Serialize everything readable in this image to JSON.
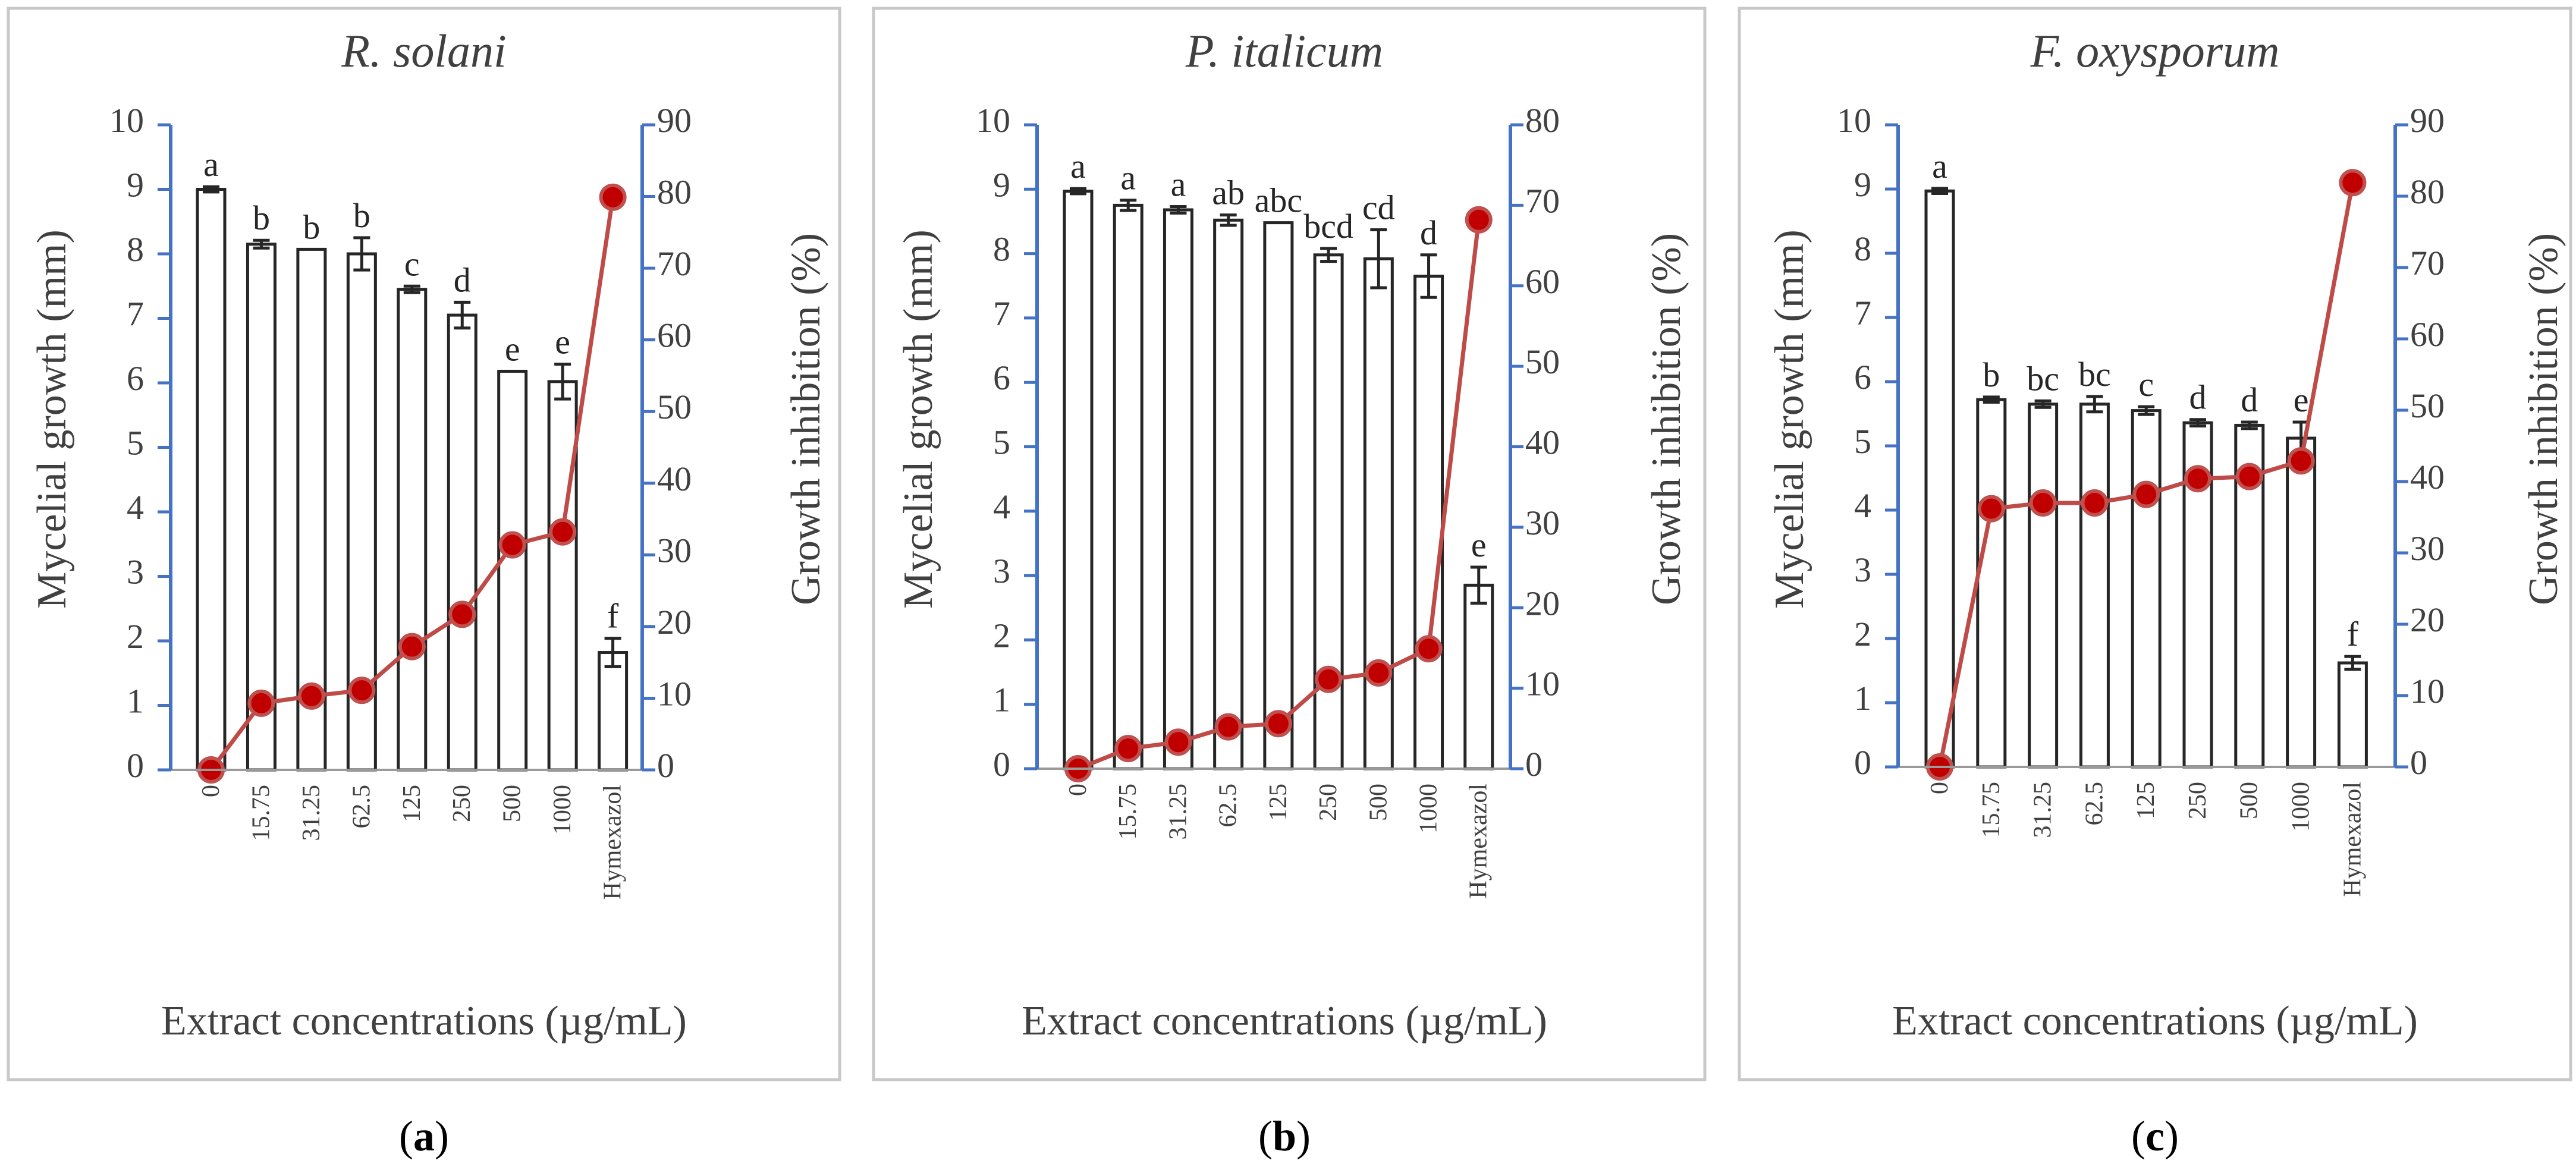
{
  "figure": {
    "x_label": "Extract concentrations (µg/mL)",
    "y_left_label": "Mycelial growth (mm)",
    "y_right_label": "Growth inhibition (%)",
    "categories": [
      "0",
      "15.75",
      "31.25",
      "62.5",
      "125",
      "250",
      "500",
      "1000",
      "Hymexazol"
    ],
    "colors": {
      "bar_fill": "#ffffff",
      "bar_stroke": "#262626",
      "line": "#be4b48",
      "marker_edge": "#c0504d",
      "marker_fill": "#c00000",
      "axis": "#4472c4",
      "frame": "#c8c8c8",
      "text": "#404040"
    }
  },
  "chart_data": [
    {
      "type": "bar+line",
      "panel_label": "a",
      "title": "R. solani",
      "categories": [
        "0",
        "15.75",
        "31.25",
        "62.5",
        "125",
        "250",
        "500",
        "1000",
        "Hymexazol"
      ],
      "bar_series": {
        "name": "Mycelial growth (mm)",
        "values": [
          9.0,
          8.15,
          8.07,
          8.0,
          7.45,
          7.05,
          6.18,
          6.02,
          1.82
        ],
        "errors": [
          0.04,
          0.06,
          0.0,
          0.25,
          0.05,
          0.2,
          0.0,
          0.27,
          0.22
        ],
        "letters": [
          "a",
          "b",
          "b",
          "b",
          "c",
          "d",
          "e",
          "e",
          "f"
        ]
      },
      "line_series": {
        "name": "Growth inhibition (%)",
        "values": [
          0,
          9.3,
          10.3,
          11.1,
          17.2,
          21.7,
          31.4,
          33.2,
          79.9
        ]
      },
      "y_left": {
        "min": 0,
        "max": 10,
        "ticks": [
          0,
          1,
          2,
          3,
          4,
          5,
          6,
          7,
          8,
          9,
          10
        ]
      },
      "y_right": {
        "min": 0,
        "max": 90,
        "ticks": [
          0,
          10,
          20,
          30,
          40,
          50,
          60,
          70,
          80,
          90
        ]
      }
    },
    {
      "type": "bar+line",
      "panel_label": "b",
      "title": "P. italicum",
      "categories": [
        "0",
        "15.75",
        "31.25",
        "62.5",
        "125",
        "250",
        "500",
        "1000",
        "Hymexazol"
      ],
      "bar_series": {
        "name": "Mycelial growth (mm)",
        "values": [
          8.97,
          8.75,
          8.68,
          8.52,
          8.48,
          7.98,
          7.92,
          7.65,
          2.85
        ],
        "errors": [
          0.04,
          0.08,
          0.05,
          0.08,
          0.0,
          0.1,
          0.45,
          0.33,
          0.28
        ],
        "letters": [
          "a",
          "a",
          "a",
          "ab",
          "abc",
          "bcd",
          "cd",
          "d",
          "e"
        ]
      },
      "line_series": {
        "name": "Growth inhibition (%)",
        "values": [
          0,
          2.5,
          3.3,
          5.2,
          5.6,
          11.1,
          11.9,
          14.9,
          68.2
        ]
      },
      "y_left": {
        "min": 0,
        "max": 10,
        "ticks": [
          0,
          1,
          2,
          3,
          4,
          5,
          6,
          7,
          8,
          9,
          10
        ]
      },
      "y_right": {
        "min": 0,
        "max": 80,
        "ticks": [
          0,
          10,
          20,
          30,
          40,
          50,
          60,
          70,
          80
        ]
      }
    },
    {
      "type": "bar+line",
      "panel_label": "c",
      "title": "F. oxysporum",
      "categories": [
        "0",
        "15.75",
        "31.25",
        "62.5",
        "125",
        "250",
        "500",
        "1000",
        "Hymexazol"
      ],
      "bar_series": {
        "name": "Mycelial growth (mm)",
        "values": [
          8.97,
          5.72,
          5.65,
          5.65,
          5.55,
          5.36,
          5.32,
          5.12,
          1.62
        ],
        "errors": [
          0.04,
          0.04,
          0.05,
          0.12,
          0.06,
          0.05,
          0.05,
          0.25,
          0.1
        ],
        "letters": [
          "a",
          "b",
          "bc",
          "bc",
          "c",
          "d",
          "d",
          "e",
          "f"
        ]
      },
      "line_series": {
        "name": "Growth inhibition (%)",
        "values": [
          0,
          36.2,
          37.0,
          37.0,
          38.2,
          40.4,
          40.7,
          42.9,
          81.9
        ]
      },
      "y_left": {
        "min": 0,
        "max": 10,
        "ticks": [
          0,
          1,
          2,
          3,
          4,
          5,
          6,
          7,
          8,
          9,
          10
        ]
      },
      "y_right": {
        "min": 0,
        "max": 90,
        "ticks": [
          0,
          10,
          20,
          30,
          40,
          50,
          60,
          70,
          80,
          90
        ]
      }
    }
  ]
}
